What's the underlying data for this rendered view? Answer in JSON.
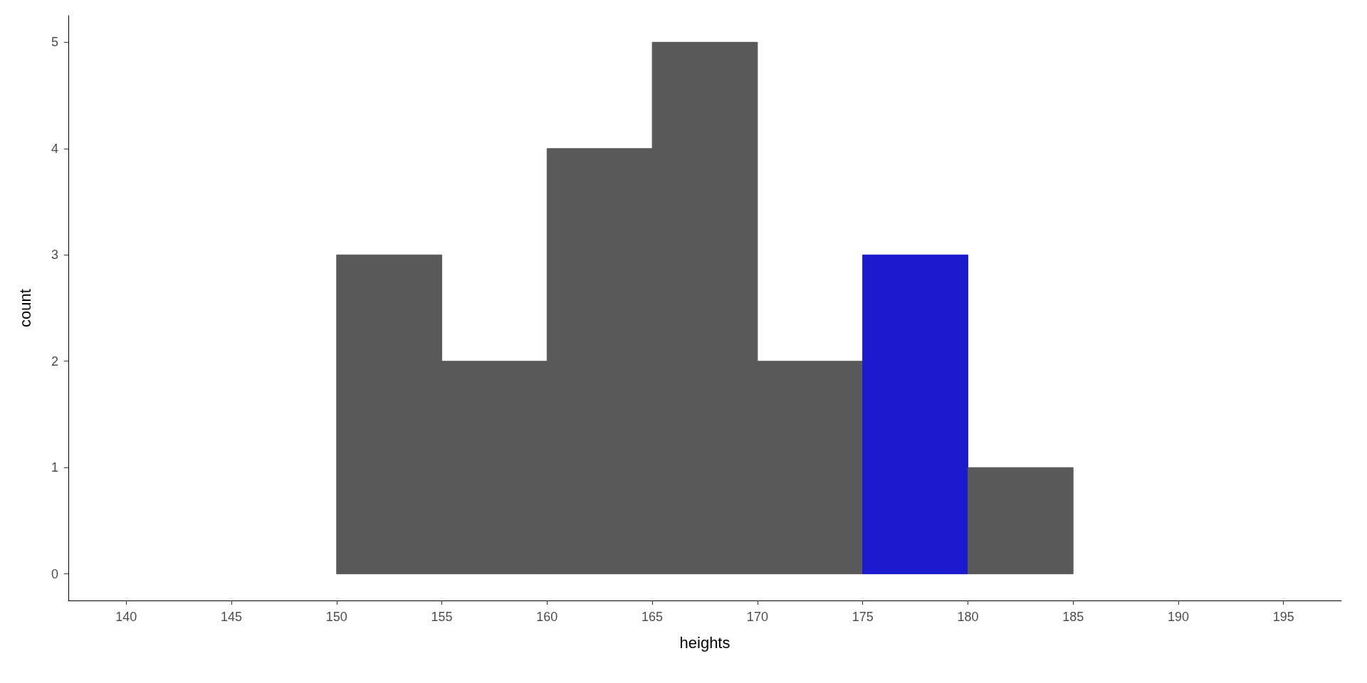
{
  "chart_data": {
    "type": "histogram",
    "xlabel": "heights",
    "ylabel": "count",
    "bins": [
      150,
      155,
      160,
      165,
      170,
      175,
      180,
      185
    ],
    "values": [
      3,
      2,
      4,
      5,
      2,
      3,
      1
    ],
    "colors": [
      "#595959",
      "#595959",
      "#595959",
      "#595959",
      "#595959",
      "#1c1ace",
      "#595959"
    ],
    "xlim": [
      137.25,
      197.75
    ],
    "xticks": [
      140,
      145,
      150,
      155,
      160,
      165,
      170,
      175,
      180,
      185,
      190,
      195
    ],
    "ylim": [
      -0.25,
      5.25
    ],
    "yticks": [
      0,
      1,
      2,
      3,
      4,
      5
    ],
    "grid": false
  }
}
